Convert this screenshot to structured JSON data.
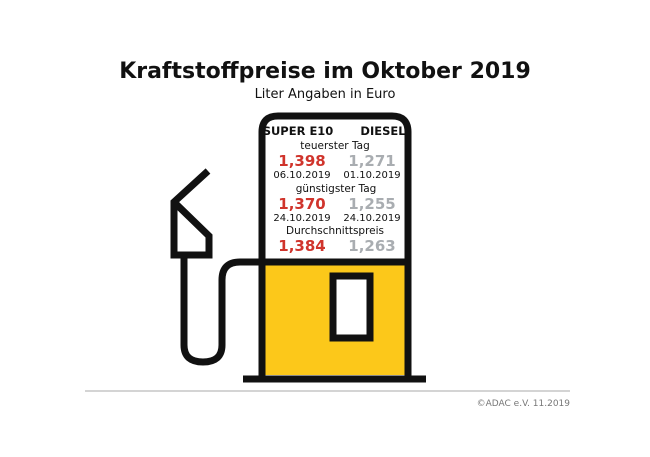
{
  "title": "Kraftstoffpreise im Oktober 2019",
  "subtitle": "Liter Angaben in Euro",
  "columns": [
    "SUPER E10",
    "DIESEL"
  ],
  "sections": [
    {
      "label": "teuerster Tag",
      "super": {
        "price": "1,398",
        "date": "06.10.2019"
      },
      "diesel": {
        "price": "1,271",
        "date": "01.10.2019"
      }
    },
    {
      "label": "günstigster Tag",
      "super": {
        "price": "1,370",
        "date": "24.10.2019"
      },
      "diesel": {
        "price": "1,255",
        "date": "24.10.2019"
      }
    },
    {
      "label": "Durchschnittspreis",
      "super": {
        "price": "1,384"
      },
      "diesel": {
        "price": "1,263"
      }
    }
  ],
  "footer": "©ADAC e.V.  11.2019",
  "colors": {
    "super": "#d0342c",
    "diesel": "#a9adb1",
    "pump_fill": "#fcc81a",
    "outline": "#111111"
  },
  "icons": [
    "fuel-pump-icon",
    "fuel-nozzle-icon"
  ]
}
